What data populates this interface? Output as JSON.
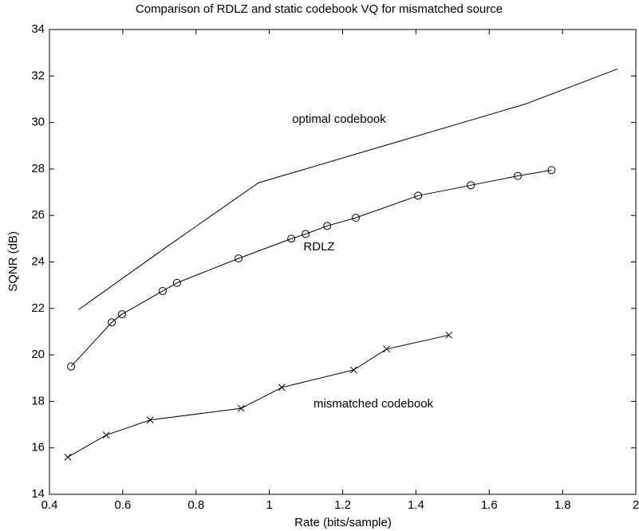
{
  "chart_data": {
    "type": "line",
    "title": "Comparison of RDLZ and static codebook VQ for mismatched source",
    "xlabel": "Rate (bits/sample)",
    "ylabel": "SQNR (dB)",
    "xlim": [
      0.4,
      2
    ],
    "ylim": [
      14,
      34
    ],
    "xticks": [
      0.4,
      0.6,
      0.8,
      1,
      1.2,
      1.4,
      1.6,
      1.8,
      2
    ],
    "yticks": [
      14,
      16,
      18,
      20,
      22,
      24,
      26,
      28,
      30,
      32,
      34
    ],
    "series": [
      {
        "color": "#000000",
        "marker": "none",
        "x": [
          0.48,
          0.72,
          0.97,
          1.7,
          1.95
        ],
        "values": [
          21.95,
          24.65,
          27.4,
          30.8,
          32.3
        ]
      },
      {
        "color": "#000000",
        "marker": "circle",
        "x": [
          0.459,
          0.57,
          0.598,
          0.709,
          0.748,
          0.916,
          1.06,
          1.099,
          1.158,
          1.236,
          1.406,
          1.55,
          1.678,
          1.77
        ],
        "values": [
          19.5,
          21.4,
          21.75,
          22.75,
          23.1,
          24.15,
          25.0,
          25.2,
          25.55,
          25.9,
          26.85,
          27.3,
          27.7,
          27.95
        ]
      },
      {
        "color": "#000000",
        "marker": "x",
        "x": [
          0.45,
          0.555,
          0.675,
          0.923,
          1.034,
          1.23,
          1.32,
          1.49
        ],
        "values": [
          15.6,
          16.55,
          17.2,
          17.7,
          18.6,
          19.35,
          20.25,
          20.85
        ]
      }
    ],
    "annotations": [
      "optimal codebook",
      "RDLZ",
      "mismatched codebook"
    ]
  }
}
